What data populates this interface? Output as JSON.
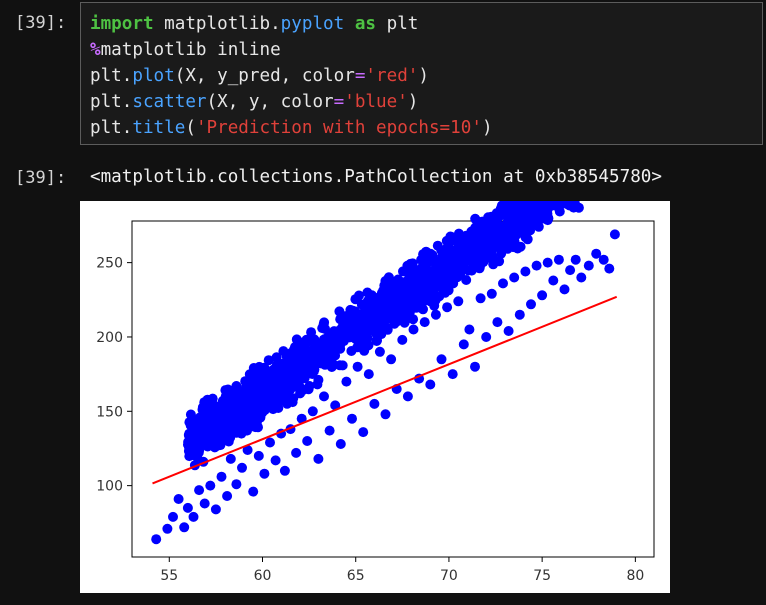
{
  "input_cell": {
    "prompt": "[39]:",
    "code_lines": [
      [
        {
          "t": "import",
          "c": "kw"
        },
        {
          "t": " matplotlib.",
          "c": ""
        },
        {
          "t": "pyplot",
          "c": "mod"
        },
        {
          "t": " ",
          "c": ""
        },
        {
          "t": "as",
          "c": "kw"
        },
        {
          "t": " plt",
          "c": ""
        }
      ],
      [
        {
          "t": "%",
          "c": "magic"
        },
        {
          "t": "matplotlib inline",
          "c": ""
        }
      ],
      [
        {
          "t": "plt.",
          "c": ""
        },
        {
          "t": "plot",
          "c": "fn"
        },
        {
          "t": "(X, y_pred, color",
          "c": ""
        },
        {
          "t": "=",
          "c": "eq"
        },
        {
          "t": "'red'",
          "c": "str"
        },
        {
          "t": ")",
          "c": ""
        }
      ],
      [
        {
          "t": "plt.",
          "c": ""
        },
        {
          "t": "scatter",
          "c": "fn"
        },
        {
          "t": "(X, y, color",
          "c": ""
        },
        {
          "t": "=",
          "c": "eq"
        },
        {
          "t": "'blue'",
          "c": "str"
        },
        {
          "t": ")",
          "c": ""
        }
      ],
      [
        {
          "t": "plt.",
          "c": ""
        },
        {
          "t": "title",
          "c": "fn"
        },
        {
          "t": "(",
          "c": ""
        },
        {
          "t": "'Prediction with epochs=10'",
          "c": "str"
        },
        {
          "t": ")",
          "c": ""
        }
      ]
    ]
  },
  "output_cell": {
    "prompt": "[39]:",
    "text": "<matplotlib.collections.PathCollection at 0xb38545780>"
  },
  "chart_data": {
    "type": "scatter",
    "title": "",
    "xlabel": "",
    "ylabel": "",
    "xlim": [
      53,
      81
    ],
    "ylim": [
      52,
      278
    ],
    "x_ticks": [
      55,
      60,
      65,
      70,
      75,
      80
    ],
    "y_ticks": [
      100,
      150,
      200,
      250
    ],
    "grid": false,
    "series": [
      {
        "type": "scatter",
        "color": "#0000ff",
        "description": "dense cloud around regression line",
        "points": [
          [
            54.3,
            64
          ],
          [
            54.9,
            71
          ],
          [
            55.2,
            79
          ],
          [
            55.5,
            91
          ],
          [
            55.8,
            72
          ],
          [
            56.0,
            85
          ],
          [
            56.3,
            79
          ],
          [
            56.6,
            97
          ],
          [
            56.9,
            88
          ],
          [
            57.2,
            100
          ],
          [
            57.5,
            84
          ],
          [
            57.8,
            106
          ],
          [
            58.1,
            93
          ],
          [
            58.3,
            118
          ],
          [
            58.6,
            101
          ],
          [
            58.9,
            112
          ],
          [
            59.2,
            124
          ],
          [
            59.5,
            96
          ],
          [
            59.8,
            120
          ],
          [
            60.1,
            108
          ],
          [
            60.4,
            129
          ],
          [
            60.7,
            117
          ],
          [
            61.0,
            135
          ],
          [
            61.2,
            110
          ],
          [
            61.5,
            138
          ],
          [
            61.8,
            122
          ],
          [
            62.1,
            145
          ],
          [
            62.4,
            130
          ],
          [
            62.7,
            150
          ],
          [
            63.0,
            118
          ],
          [
            63.3,
            160
          ],
          [
            63.6,
            137
          ],
          [
            63.9,
            154
          ],
          [
            64.2,
            128
          ],
          [
            64.5,
            170
          ],
          [
            64.8,
            145
          ],
          [
            65.1,
            180
          ],
          [
            65.4,
            136
          ],
          [
            65.7,
            175
          ],
          [
            66.0,
            155
          ],
          [
            66.3,
            190
          ],
          [
            66.6,
            148
          ],
          [
            66.9,
            185
          ],
          [
            67.2,
            165
          ],
          [
            67.5,
            198
          ],
          [
            67.8,
            160
          ],
          [
            68.1,
            205
          ],
          [
            68.4,
            172
          ],
          [
            68.7,
            210
          ],
          [
            69.0,
            168
          ],
          [
            69.3,
            215
          ],
          [
            69.6,
            185
          ],
          [
            69.9,
            220
          ],
          [
            70.2,
            175
          ],
          [
            70.5,
            224
          ],
          [
            70.8,
            195
          ],
          [
            71.1,
            205
          ],
          [
            71.4,
            180
          ],
          [
            71.7,
            226
          ],
          [
            72.0,
            200
          ],
          [
            72.3,
            229
          ],
          [
            72.6,
            210
          ],
          [
            72.9,
            236
          ],
          [
            73.2,
            204
          ],
          [
            73.5,
            240
          ],
          [
            73.8,
            215
          ],
          [
            74.1,
            244
          ],
          [
            74.4,
            222
          ],
          [
            74.7,
            248
          ],
          [
            75.0,
            228
          ],
          [
            75.3,
            250
          ],
          [
            75.6,
            238
          ],
          [
            75.9,
            252
          ],
          [
            76.2,
            232
          ],
          [
            76.5,
            245
          ],
          [
            76.8,
            252
          ],
          [
            77.1,
            240
          ],
          [
            77.5,
            248
          ],
          [
            77.9,
            256
          ],
          [
            78.3,
            252
          ],
          [
            78.6,
            246
          ],
          [
            78.9,
            269
          ]
        ]
      },
      {
        "type": "line",
        "color": "#ff0000",
        "points": [
          [
            54.1,
            101.5
          ],
          [
            79.0,
            227
          ]
        ]
      }
    ]
  }
}
